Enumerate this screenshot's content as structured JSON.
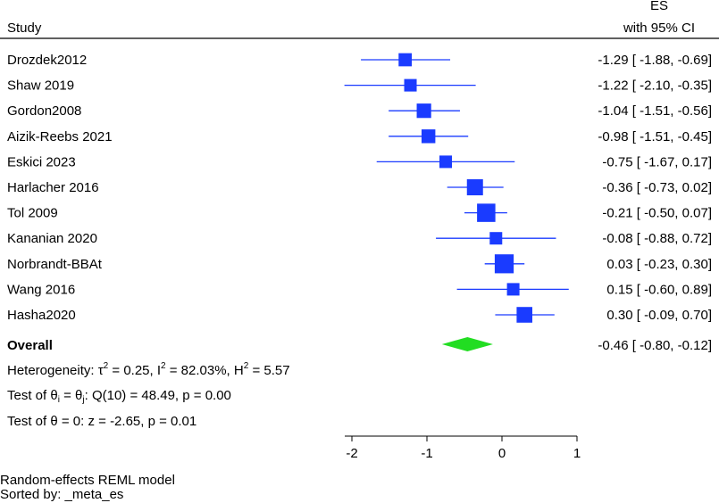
{
  "chart_data": {
    "type": "forest",
    "header": {
      "study": "Study",
      "es_line1": "ES",
      "es_line2": "with 95% CI"
    },
    "studies": [
      {
        "name": "Drozdek2012",
        "es": -1.29,
        "lo": -1.88,
        "hi": -0.69,
        "ci_text": "-1.29 [ -1.88, -0.69]"
      },
      {
        "name": "Shaw 2019",
        "es": -1.22,
        "lo": -2.1,
        "hi": -0.35,
        "ci_text": "-1.22 [ -2.10, -0.35]"
      },
      {
        "name": "Gordon2008",
        "es": -1.04,
        "lo": -1.51,
        "hi": -0.56,
        "ci_text": "-1.04 [ -1.51, -0.56]"
      },
      {
        "name": "Aizik-Reebs 2021",
        "es": -0.98,
        "lo": -1.51,
        "hi": -0.45,
        "ci_text": "-0.98 [ -1.51, -0.45]"
      },
      {
        "name": "Eskici 2023",
        "es": -0.75,
        "lo": -1.67,
        "hi": 0.17,
        "ci_text": "-0.75 [ -1.67,  0.17]"
      },
      {
        "name": "Harlacher 2016",
        "es": -0.36,
        "lo": -0.73,
        "hi": 0.02,
        "ci_text": "-0.36 [ -0.73,  0.02]"
      },
      {
        "name": "Tol 2009",
        "es": -0.21,
        "lo": -0.5,
        "hi": 0.07,
        "ci_text": "-0.21 [ -0.50,  0.07]"
      },
      {
        "name": "Kananian 2020",
        "es": -0.08,
        "lo": -0.88,
        "hi": 0.72,
        "ci_text": "-0.08 [ -0.88,  0.72]"
      },
      {
        "name": "Norbrandt-BBAt",
        "es": 0.03,
        "lo": -0.23,
        "hi": 0.3,
        "ci_text": "0.03 [ -0.23,  0.30]"
      },
      {
        "name": "Wang 2016",
        "es": 0.15,
        "lo": -0.6,
        "hi": 0.89,
        "ci_text": "0.15 [ -0.60,  0.89]"
      },
      {
        "name": "Hasha2020",
        "es": 0.3,
        "lo": -0.09,
        "hi": 0.7,
        "ci_text": "0.30 [ -0.09,  0.70]"
      }
    ],
    "overall": {
      "name": "Overall",
      "es": -0.46,
      "lo": -0.8,
      "hi": -0.12,
      "ci_text": "-0.46 [ -0.80, -0.12]"
    },
    "heterogeneity": {
      "prefix": "Heterogeneity: τ",
      "tau_sup": "2",
      "tau_val": " = 0.25, I",
      "i_sup": "2",
      "i_val": " = 82.03%, H",
      "h_sup": "2",
      "h_val": " = 5.57"
    },
    "test_theta_i": {
      "prefix": "Test of θ",
      "sub1": "i",
      "mid": " = θ",
      "sub2": "j",
      "rest": ": Q(10) = 48.49, p = 0.00"
    },
    "test_theta": "Test of θ = 0: z = -2.65, p = 0.01",
    "x_ticks": [
      -2,
      -1,
      0,
      1
    ],
    "xlim": [
      -2.0,
      1.0
    ],
    "model_note": "Random-effects REML model",
    "sort_note": "Sorted by: _meta_es",
    "colors": {
      "marker": "#1a3bff",
      "diamond": "#22dd22",
      "line": "#1a3bff"
    }
  }
}
